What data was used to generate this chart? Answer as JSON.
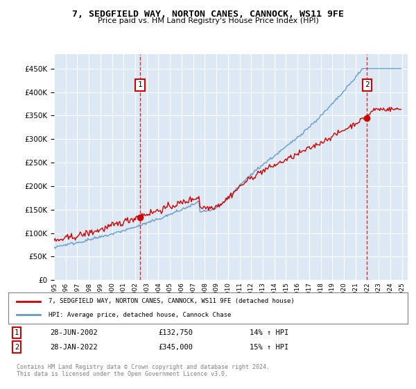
{
  "title": "7, SEDGFIELD WAY, NORTON CANES, CANNOCK, WS11 9FE",
  "subtitle": "Price paid vs. HM Land Registry's House Price Index (HPI)",
  "bg_color": "#dce9f5",
  "plot_bg_color": "#dce9f5",
  "sale1_date": "28-JUN-2002",
  "sale1_price": 132750,
  "sale1_label": "1",
  "sale1_hpi": "14% ↑ HPI",
  "sale2_date": "28-JAN-2022",
  "sale2_price": 345000,
  "sale2_label": "2",
  "sale2_hpi": "15% ↑ HPI",
  "legend_line1": "7, SEDGFIELD WAY, NORTON CANES, CANNOCK, WS11 9FE (detached house)",
  "legend_line2": "HPI: Average price, detached house, Cannock Chase",
  "footer": "Contains HM Land Registry data © Crown copyright and database right 2024.\nThis data is licensed under the Open Government Licence v3.0.",
  "ylim": [
    0,
    480000
  ],
  "yticks": [
    0,
    50000,
    100000,
    150000,
    200000,
    250000,
    300000,
    350000,
    400000,
    450000
  ],
  "line_color_red": "#cc0000",
  "line_color_blue": "#6699cc",
  "dashed_line_color": "#cc0000",
  "marker_color": "#cc0000",
  "annotation_box_color": "#cc0000"
}
